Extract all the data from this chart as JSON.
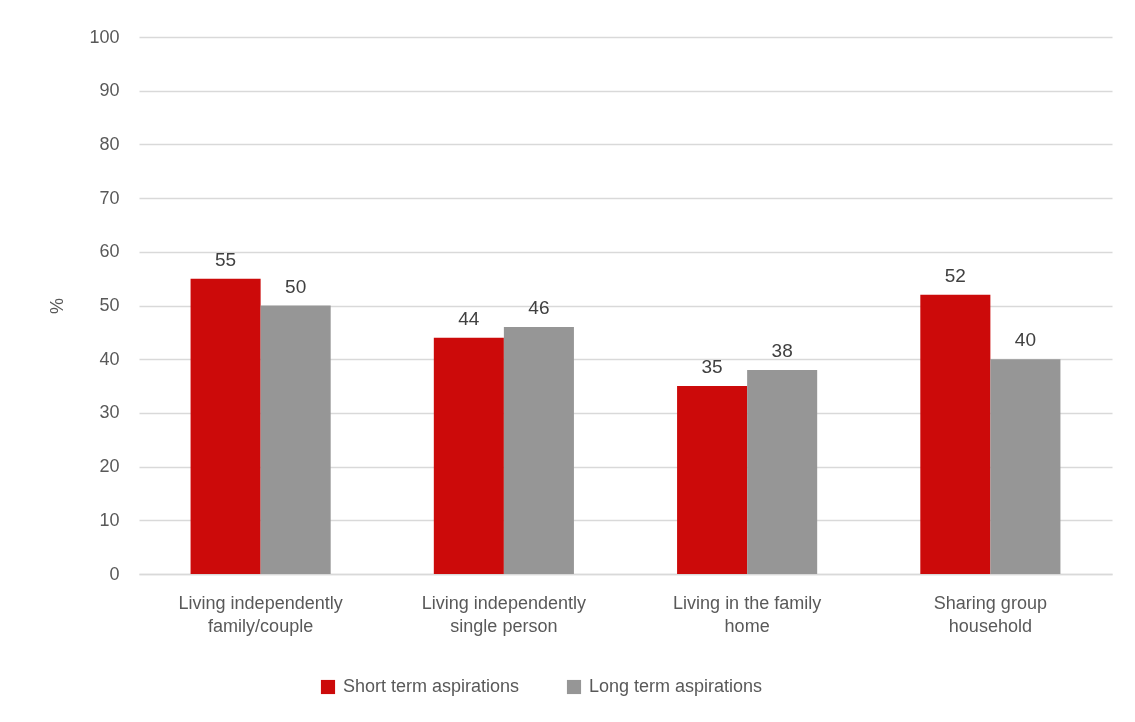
{
  "chart_data": {
    "type": "bar",
    "ylabel": "%",
    "categories": [
      "Living independently family/couple",
      "Living independently single person",
      "Living in the family home",
      "Sharing  group household"
    ],
    "series": [
      {
        "name": "Short term aspirations",
        "color": "#cc0a0a",
        "values": [
          55,
          44,
          35,
          52
        ]
      },
      {
        "name": "Long term aspirations",
        "color": "#969696",
        "values": [
          50,
          46,
          38,
          40
        ]
      }
    ],
    "ylim": [
      0,
      100
    ],
    "yticks": [
      0,
      10,
      20,
      30,
      40,
      50,
      60,
      70,
      80,
      90,
      100
    ],
    "grid": "y",
    "legend": "bottom",
    "data_labels": true
  }
}
